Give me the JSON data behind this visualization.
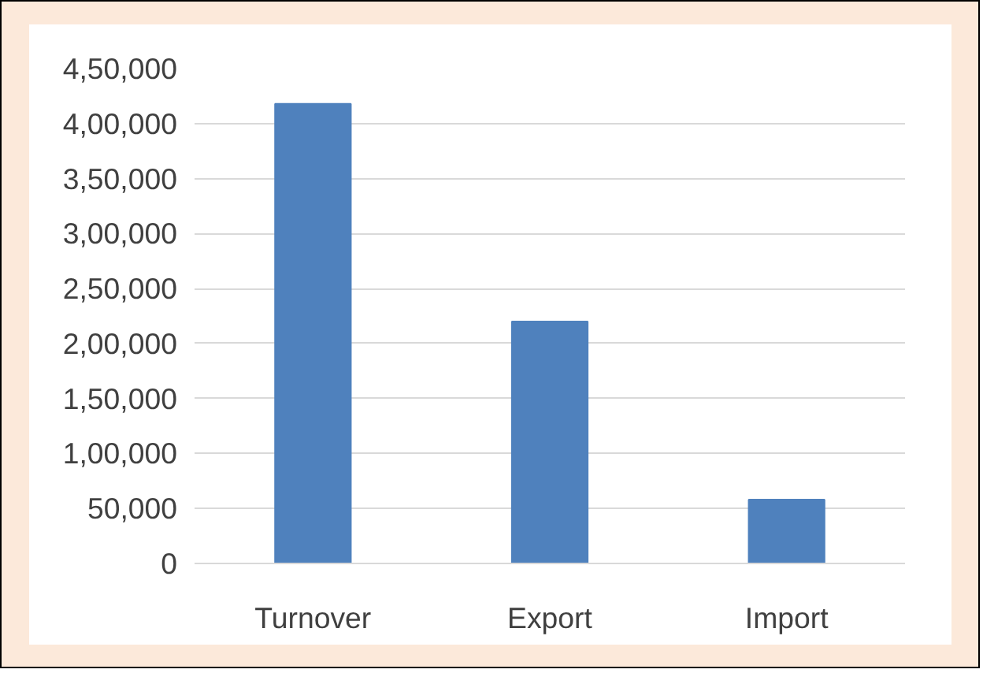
{
  "chart_data": {
    "type": "bar",
    "categories": [
      "Turnover",
      "Export",
      "Import"
    ],
    "values": [
      418000,
      220000,
      58000
    ],
    "color": "#4f81bd",
    "ylim": [
      0,
      450000
    ],
    "yticks": [
      {
        "value": 0,
        "label": "0"
      },
      {
        "value": 50000,
        "label": "50,000"
      },
      {
        "value": 100000,
        "label": "1,00,000"
      },
      {
        "value": 150000,
        "label": "1,50,000"
      },
      {
        "value": 200000,
        "label": "2,00,000"
      },
      {
        "value": 250000,
        "label": "2,50,000"
      },
      {
        "value": 300000,
        "label": "3,00,000"
      },
      {
        "value": 350000,
        "label": "3,50,000"
      },
      {
        "value": 400000,
        "label": "4,00,000"
      },
      {
        "value": 450000,
        "label": "4,50,000"
      }
    ],
    "grid": "y"
  }
}
